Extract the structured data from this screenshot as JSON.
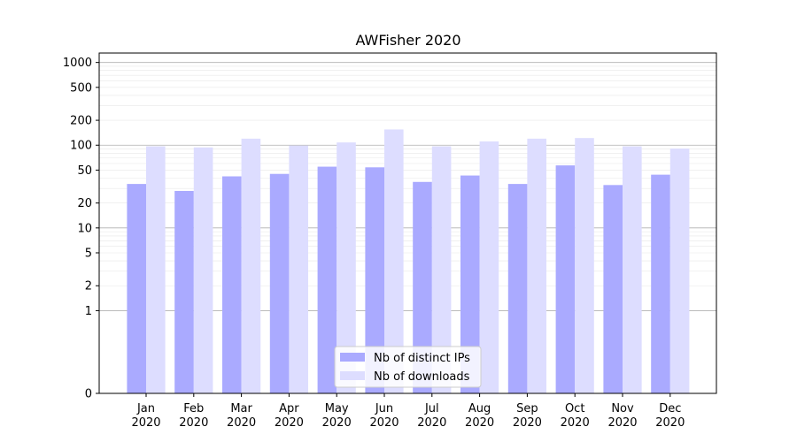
{
  "chart_data": {
    "type": "bar",
    "title": "AWFisher 2020",
    "categories": [
      "Jan\n2020",
      "Feb\n2020",
      "Mar\n2020",
      "Apr\n2020",
      "May\n2020",
      "Jun\n2020",
      "Jul\n2020",
      "Aug\n2020",
      "Sep\n2020",
      "Oct\n2020",
      "Nov\n2020",
      "Dec\n2020"
    ],
    "series": [
      {
        "name": "Nb of distinct IPs",
        "color": "#aaaaff",
        "values": [
          34,
          28,
          42,
          45,
          55,
          54,
          36,
          43,
          34,
          57,
          33,
          44
        ]
      },
      {
        "name": "Nb of downloads",
        "color": "#ddddff",
        "values": [
          97,
          94,
          120,
          99,
          108,
          155,
          97,
          111,
          120,
          122,
          97,
          91
        ]
      }
    ],
    "yscale": "symlog",
    "yticks": [
      0,
      1,
      2,
      5,
      10,
      20,
      50,
      100,
      200,
      500,
      1000
    ],
    "ytick_labels": [
      "0",
      "1",
      "2",
      "5",
      "10",
      "20",
      "50",
      "100",
      "200",
      "500",
      "1000"
    ],
    "ylim": [
      0,
      1300
    ],
    "grid": true,
    "legend": "lower-center"
  }
}
